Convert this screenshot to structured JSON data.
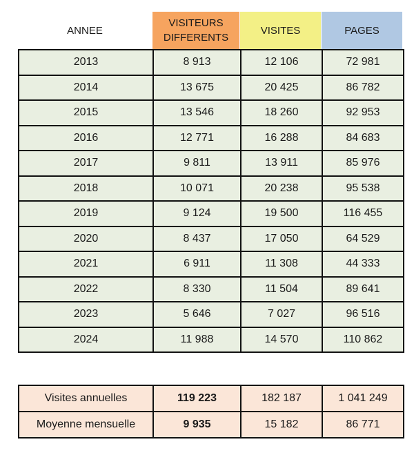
{
  "headers": {
    "annee": "ANNEE",
    "visiteurs_differents": "VISITEURS\nDIFFERENTS",
    "visites": "VISITES",
    "pages": "PAGES"
  },
  "rows": [
    {
      "annee": "2013",
      "visiteurs": "8 913",
      "visites": "12 106",
      "pages": "72 981"
    },
    {
      "annee": "2014",
      "visiteurs": "13 675",
      "visites": "20 425",
      "pages": "86 782"
    },
    {
      "annee": "2015",
      "visiteurs": "13 546",
      "visites": "18 260",
      "pages": "92 953"
    },
    {
      "annee": "2016",
      "visiteurs": "12 771",
      "visites": "16 288",
      "pages": "84 683"
    },
    {
      "annee": "2017",
      "visiteurs": "9 811",
      "visites": "13 911",
      "pages": "85 976"
    },
    {
      "annee": "2018",
      "visiteurs": "10 071",
      "visites": "20 238",
      "pages": "95 538"
    },
    {
      "annee": "2019",
      "visiteurs": "9 124",
      "visites": "19 500",
      "pages": "116 455"
    },
    {
      "annee": "2020",
      "visiteurs": "8 437",
      "visites": "17 050",
      "pages": "64 529"
    },
    {
      "annee": "2021",
      "visiteurs": "6 911",
      "visites": "11 308",
      "pages": "44 333"
    },
    {
      "annee": "2022",
      "visiteurs": "8 330",
      "visites": "11 504",
      "pages": "89 641"
    },
    {
      "annee": "2023",
      "visiteurs": "5 646",
      "visites": "7 027",
      "pages": "96 516"
    },
    {
      "annee": "2024",
      "visiteurs": "11 988",
      "visites": "14 570",
      "pages": "110 862"
    }
  ],
  "totals": [
    {
      "label": "Visites annuelles",
      "visiteurs": "119 223",
      "visites": "182 187",
      "pages": "1 041 249"
    },
    {
      "label": "Moyenne mensuelle",
      "visiteurs": "9 935",
      "visites": "15 182",
      "pages": "86 771"
    }
  ],
  "colors": {
    "visiteurs_header": "#f6a45f",
    "visites_header": "#f3f086",
    "pages_header": "#b0c8e3",
    "year_rows": "#e9efe1",
    "total_rows": "#fbe6d8"
  }
}
